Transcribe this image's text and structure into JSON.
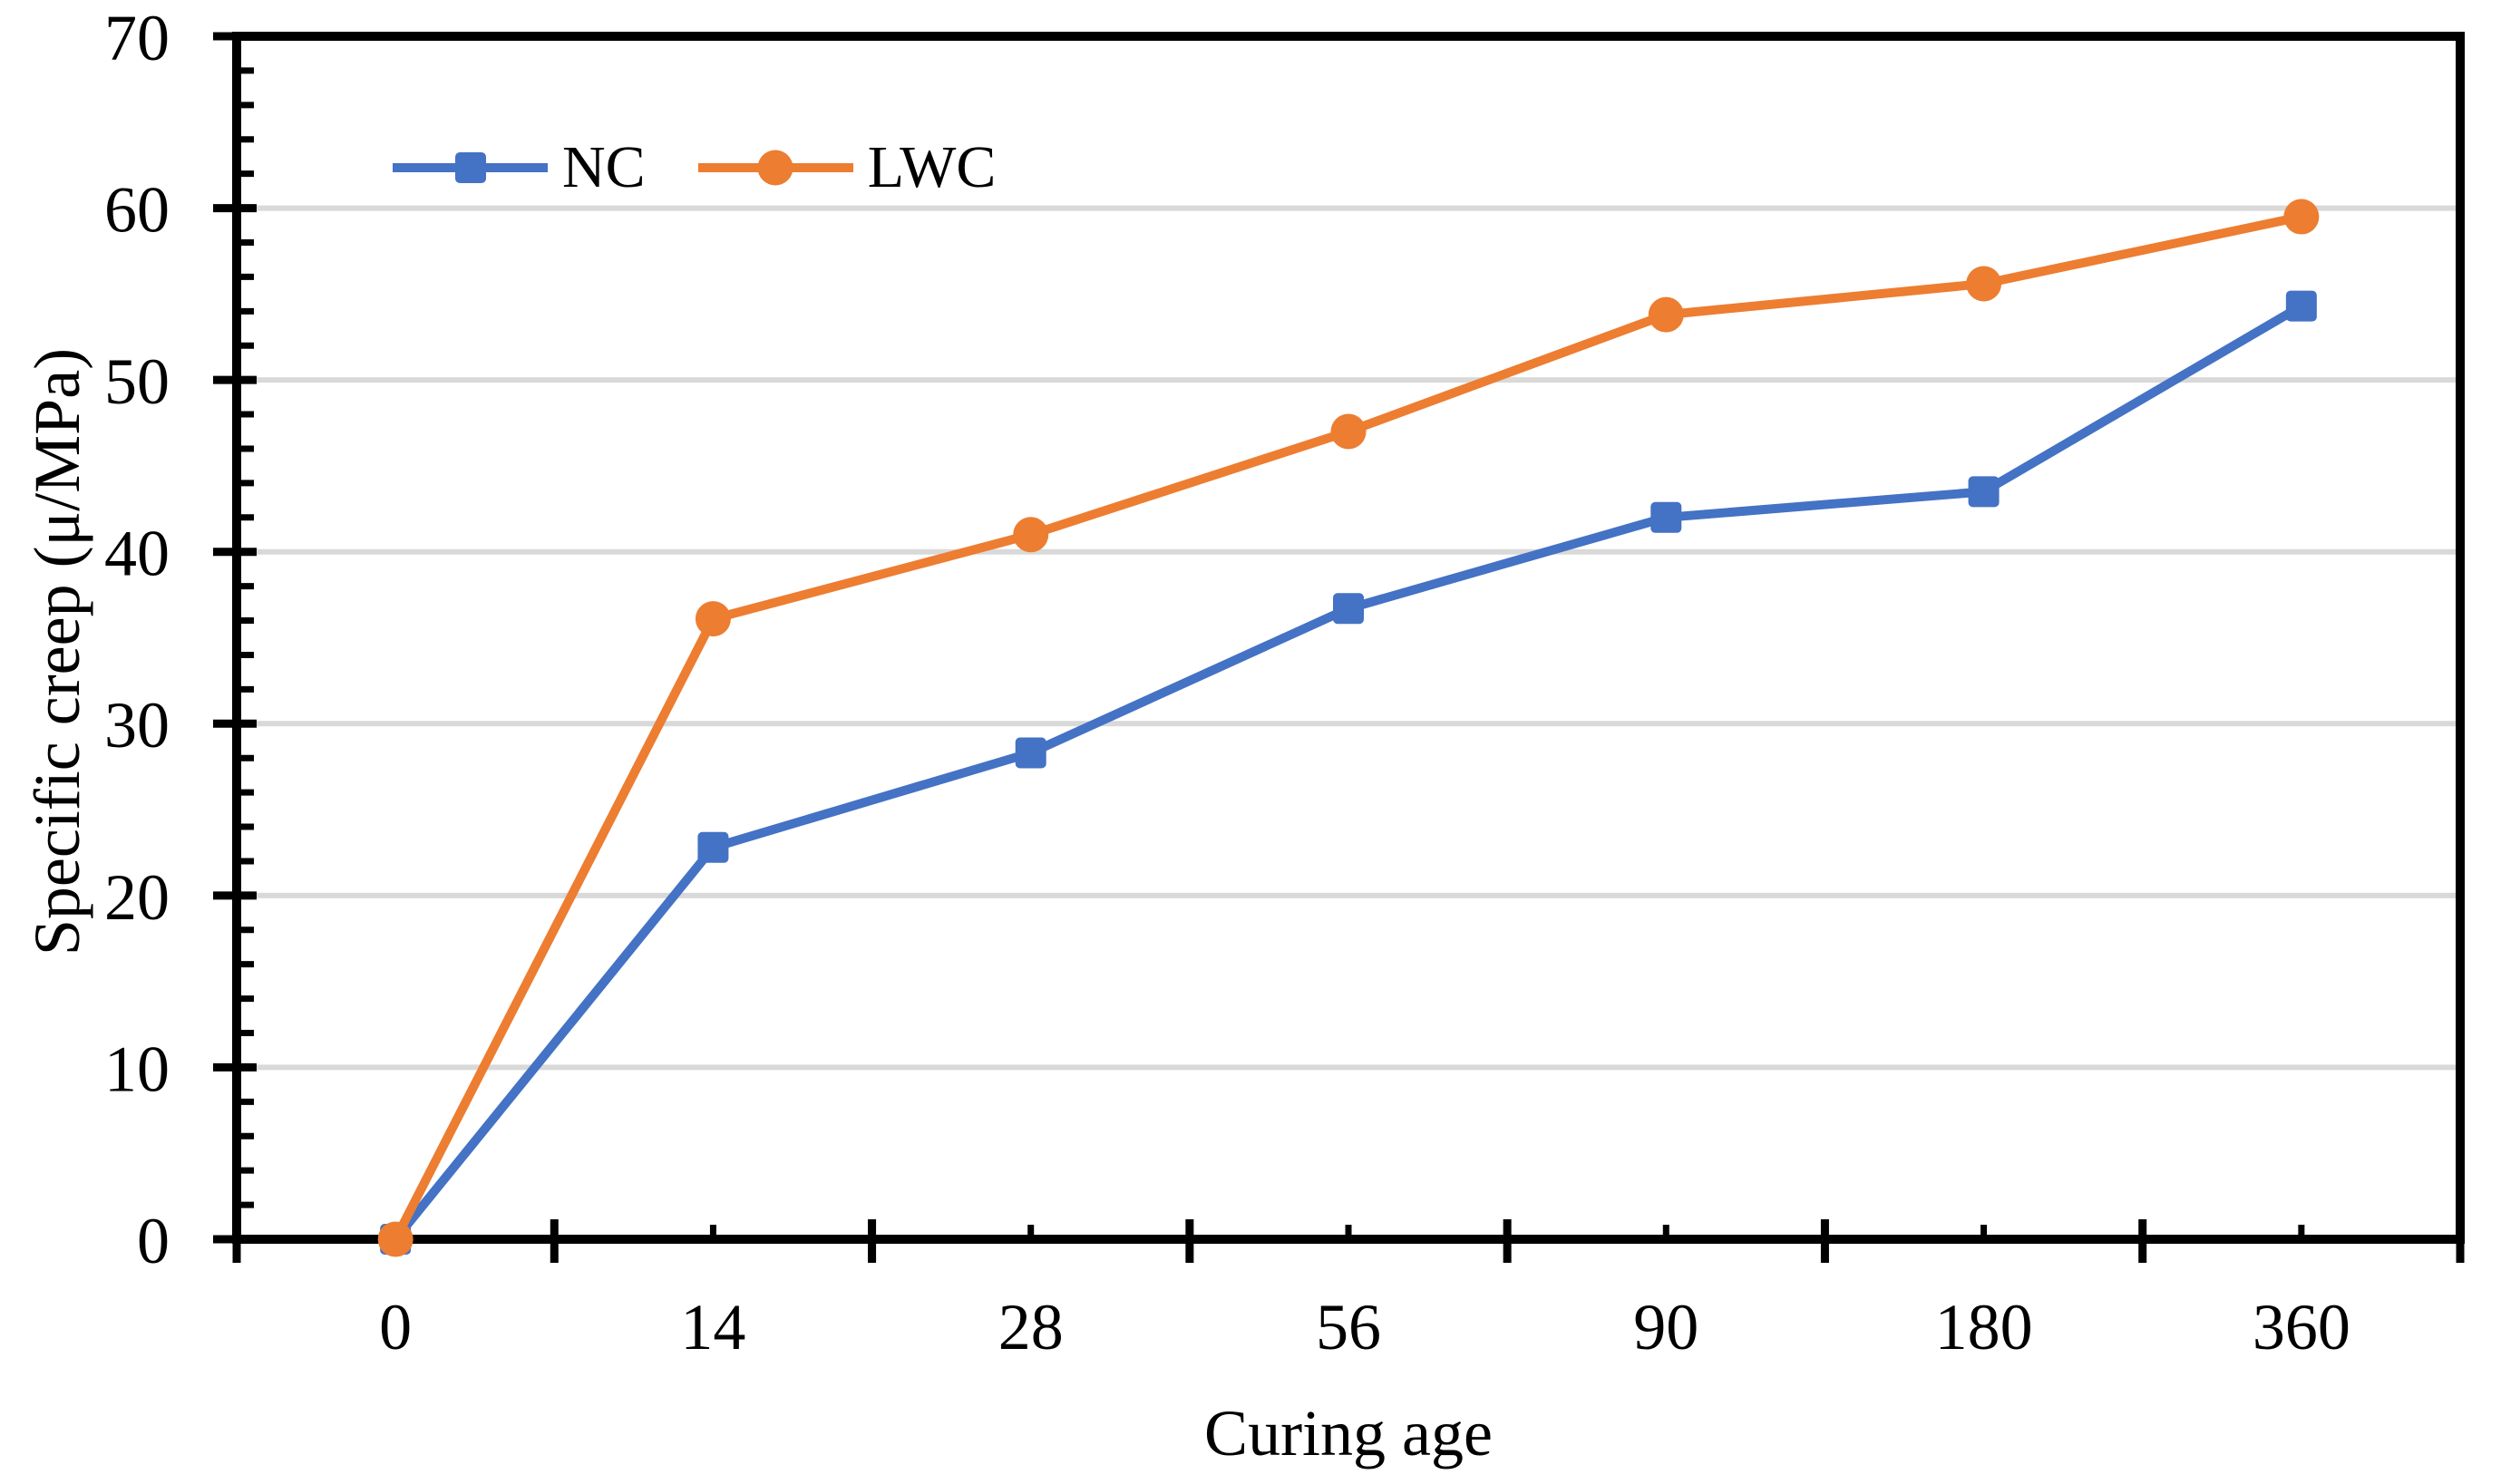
{
  "figure": {
    "background": "#FFFFFF",
    "text_color": "#000000"
  },
  "chart_data": {
    "type": "line",
    "title": "",
    "xlabel": "Curing age",
    "ylabel": "Specific creep (μ/MPa)",
    "categories": [
      "0",
      "14",
      "28",
      "56",
      "90",
      "180",
      "360"
    ],
    "series": [
      {
        "name": "NC",
        "color": "#4472C4",
        "marker": "square",
        "values": [
          0,
          22.8,
          28.3,
          36.7,
          42.0,
          43.5,
          54.3
        ]
      },
      {
        "name": "LWC",
        "color": "#ED7D31",
        "marker": "circle",
        "values": [
          0,
          36.1,
          41.0,
          47.0,
          53.8,
          55.6,
          59.5
        ]
      }
    ],
    "y_axis": {
      "min": 0,
      "max": 70,
      "major_step": 10,
      "minor_step": 2,
      "ticks": [
        "0",
        "10",
        "20",
        "30",
        "40",
        "50",
        "60",
        "70"
      ]
    },
    "x_axis": {
      "tick_placement": "between-categories",
      "minor_tick_at_category_center": true
    },
    "grid": {
      "major_horizontal": true,
      "color": "#D9D9D9"
    },
    "axis_color": "#000000",
    "legend": {
      "position": "top-left-inside"
    }
  }
}
